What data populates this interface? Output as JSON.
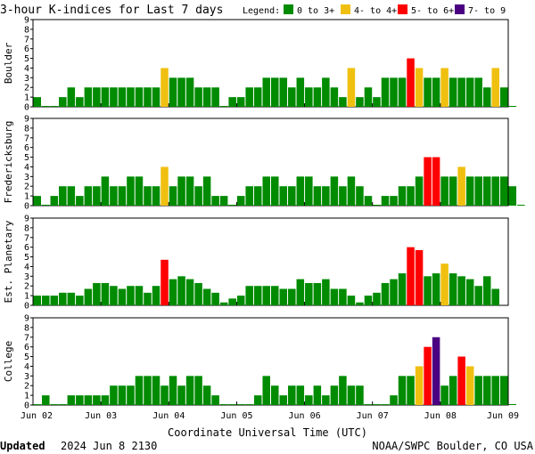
{
  "header": {
    "title": "3-hour K-indices for Last 7 days",
    "legend_label": "Legend:",
    "legend": [
      {
        "label": "0 to 3+",
        "color": "#008b00"
      },
      {
        "label": "4- to 4+",
        "color": "#f0c010"
      },
      {
        "label": "5- to 6+",
        "color": "#ff0000"
      },
      {
        "label": "7- to 9",
        "color": "#4b0082"
      }
    ]
  },
  "footer": {
    "updated_label": "Updated",
    "updated_value": "2024 Jun  8 2130",
    "source": "NOAA/SWPC Boulder, CO USA"
  },
  "chart_data": {
    "type": "bar",
    "xlabel": "Coordinate Universal Time (UTC)",
    "x_ticks": [
      "Jun 02",
      "Jun 03",
      "Jun 04",
      "Jun 05",
      "Jun 06",
      "Jun 07",
      "Jun 08",
      "Jun 09"
    ],
    "ylim": [
      0,
      9
    ],
    "y_ticks": [
      0,
      1,
      2,
      3,
      4,
      5,
      6,
      7,
      8,
      9
    ],
    "grid": false,
    "panels": [
      {
        "name": "Boulder",
        "values": [
          1,
          0,
          0,
          1,
          2,
          1,
          2,
          2,
          2,
          2,
          2,
          2,
          2,
          2,
          2,
          4,
          3,
          3,
          3,
          2,
          2,
          2,
          0,
          1,
          1,
          2,
          2,
          3,
          3,
          3,
          2,
          3,
          2,
          2,
          3,
          2,
          1,
          4,
          1,
          2,
          1,
          3,
          3,
          3,
          5,
          4,
          3,
          3,
          4,
          3,
          3,
          3,
          3,
          2,
          4,
          2,
          0
        ]
      },
      {
        "name": "Fredericksburg",
        "values": [
          1,
          0,
          1,
          2,
          2,
          1,
          2,
          2,
          3,
          2,
          2,
          3,
          3,
          2,
          2,
          4,
          2,
          3,
          3,
          2,
          3,
          1,
          1,
          0,
          1,
          2,
          2,
          3,
          3,
          2,
          2,
          3,
          3,
          2,
          2,
          3,
          2,
          3,
          2,
          1,
          0,
          1,
          1,
          2,
          2,
          3,
          5,
          5,
          3,
          3,
          4,
          3,
          3,
          3,
          3,
          3,
          2,
          0
        ]
      },
      {
        "name": "Est. Planetary",
        "values": [
          1,
          1,
          1,
          1.3,
          1.3,
          1,
          1.7,
          2.3,
          2.3,
          2,
          1.7,
          2,
          2,
          1.3,
          2,
          4.7,
          2.7,
          3,
          2.7,
          2.3,
          1.7,
          1.3,
          0.3,
          0.7,
          1,
          2,
          2,
          2,
          2,
          1.7,
          1.7,
          2.7,
          2.3,
          2.3,
          2.7,
          1.7,
          1.7,
          1,
          0.3,
          1,
          1.3,
          2.3,
          2.7,
          3.3,
          6,
          5.7,
          3,
          3.3,
          4.3,
          3.3,
          3,
          2.7,
          2,
          3,
          1.7
        ]
      },
      {
        "name": "College",
        "values": [
          0,
          1,
          0,
          0,
          1,
          1,
          1,
          1,
          1,
          2,
          2,
          2,
          3,
          3,
          3,
          2,
          3,
          2,
          3,
          3,
          2,
          1,
          0,
          0,
          0,
          0,
          1,
          3,
          2,
          1,
          2,
          2,
          1,
          2,
          1,
          2,
          3,
          2,
          2,
          0,
          0,
          0,
          1,
          3,
          3,
          4,
          6,
          7,
          2,
          3,
          5,
          4,
          3,
          3,
          3,
          3,
          0
        ]
      }
    ]
  }
}
